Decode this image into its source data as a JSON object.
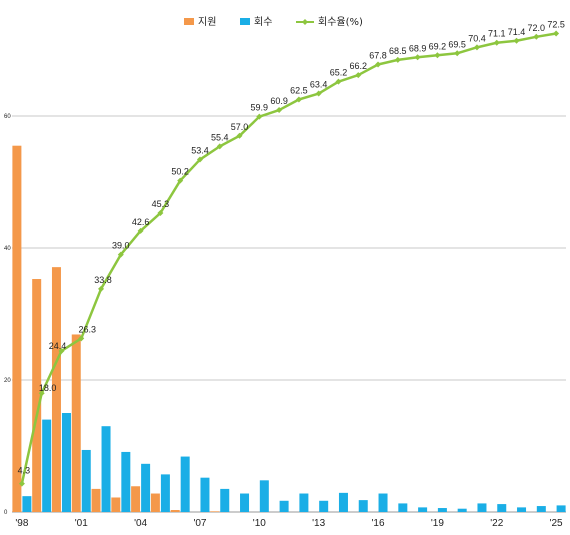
{
  "chart_data": {
    "type": "bar+line",
    "x": [
      "'98",
      "'99",
      "'00",
      "'01",
      "'02",
      "'03",
      "'04",
      "'05",
      "'06",
      "'07",
      "'08",
      "'09",
      "'10",
      "'11",
      "'12",
      "'13",
      "'14",
      "'15",
      "'16",
      "'17",
      "'18",
      "'19",
      "'20",
      "'21",
      "'22",
      "'23",
      "'24",
      "'25"
    ],
    "x_tick_labels": [
      "'98",
      "'01",
      "'04",
      "'07",
      "'10",
      "'13",
      "'16",
      "'19",
      "'22",
      "'25"
    ],
    "y_tick_labels": [
      "0",
      "20",
      "40",
      "60"
    ],
    "ylim": [
      0,
      78
    ],
    "grid": true,
    "legend_position": "top",
    "series": [
      {
        "name": "지원",
        "type": "bar",
        "color": "#F4984A",
        "values": [
          55.5,
          35.3,
          37.1,
          26.9,
          3.5,
          2.2,
          3.9,
          2.8,
          0.3,
          0,
          0.1,
          0,
          0,
          0,
          0,
          0,
          0,
          0,
          0,
          0,
          0,
          0,
          0,
          0,
          0,
          0,
          0,
          0
        ]
      },
      {
        "name": "회수",
        "type": "bar",
        "color": "#1AAEE6",
        "values": [
          2.4,
          14.0,
          15.0,
          9.4,
          13.0,
          9.1,
          7.3,
          5.7,
          8.4,
          5.2,
          3.5,
          2.8,
          4.8,
          1.7,
          2.8,
          1.7,
          2.9,
          1.8,
          2.8,
          1.3,
          0.7,
          0.6,
          0.5,
          1.3,
          1.2,
          0.7,
          0.9,
          1.0
        ]
      },
      {
        "name": "회수율(%)",
        "type": "line",
        "color": "#8DC63F",
        "values": [
          4.3,
          18.0,
          24.4,
          26.3,
          33.8,
          39.0,
          42.6,
          45.3,
          50.2,
          53.4,
          55.4,
          57.0,
          59.9,
          60.9,
          62.5,
          63.4,
          65.2,
          66.2,
          67.8,
          68.5,
          68.9,
          69.2,
          69.5,
          70.4,
          71.1,
          71.4,
          72.0,
          72.5
        ],
        "data_labels": [
          "4.3",
          "18.0",
          "24.4",
          "26.3",
          "33.8",
          "39.0",
          "42.6",
          "45.3",
          "50.2",
          "53.4",
          "55.4",
          "57.0",
          "59.9",
          "60.9",
          "62.5",
          "63.4",
          "65.2",
          "66.2",
          "67.8",
          "68.5",
          "68.9",
          "69.2",
          "69.5",
          "70.4",
          "71.1",
          "71.4",
          "72.0",
          "72.5"
        ]
      }
    ]
  }
}
